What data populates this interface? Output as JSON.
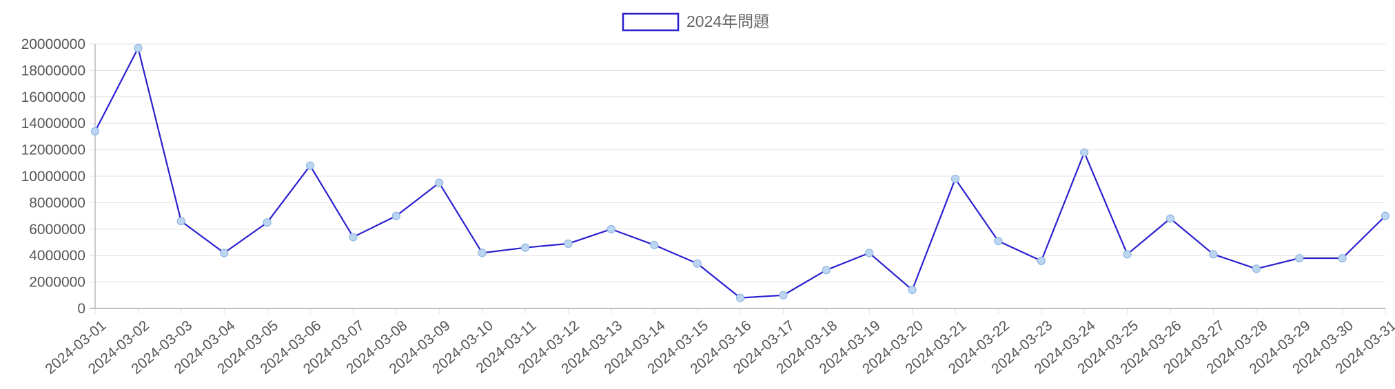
{
  "chart_data": {
    "type": "line",
    "title": "",
    "xlabel": "",
    "ylabel": "",
    "ylim": [
      0,
      20000000
    ],
    "y_ticks": [
      0,
      2000000,
      4000000,
      6000000,
      8000000,
      10000000,
      12000000,
      14000000,
      16000000,
      18000000,
      20000000
    ],
    "y_tick_labels": [
      "0",
      "2000000",
      "4000000",
      "6000000",
      "8000000",
      "10000000",
      "12000000",
      "14000000",
      "16000000",
      "18000000",
      "20000000"
    ],
    "grid": true,
    "legend_position": "top-center",
    "categories": [
      "2024-03-01",
      "2024-03-02",
      "2024-03-03",
      "2024-03-04",
      "2024-03-05",
      "2024-03-06",
      "2024-03-07",
      "2024-03-08",
      "2024-03-09",
      "2024-03-10",
      "2024-03-11",
      "2024-03-12",
      "2024-03-13",
      "2024-03-14",
      "2024-03-15",
      "2024-03-16",
      "2024-03-17",
      "2024-03-18",
      "2024-03-19",
      "2024-03-20",
      "2024-03-21",
      "2024-03-22",
      "2024-03-23",
      "2024-03-24",
      "2024-03-25",
      "2024-03-26",
      "2024-03-27",
      "2024-03-28",
      "2024-03-29",
      "2024-03-30",
      "2024-03-31"
    ],
    "series": [
      {
        "name": "2024年問題",
        "color": "#2a1fd0",
        "point_fill": "#bcd6f2",
        "values": [
          13400000,
          19700000,
          6600000,
          4200000,
          6500000,
          10800000,
          5400000,
          7000000,
          9500000,
          4200000,
          4600000,
          4900000,
          6000000,
          4800000,
          3400000,
          800000,
          1000000,
          2900000,
          4200000,
          1400000,
          9800000,
          5100000,
          3600000,
          11800000,
          4100000,
          6800000,
          4100000,
          3000000,
          3800000,
          3800000,
          7000000
        ]
      }
    ]
  },
  "colors": {
    "grid": "#e0e0e0",
    "axis": "#a8a8a8",
    "tick_text": "#555555",
    "legend_text": "#666666"
  }
}
